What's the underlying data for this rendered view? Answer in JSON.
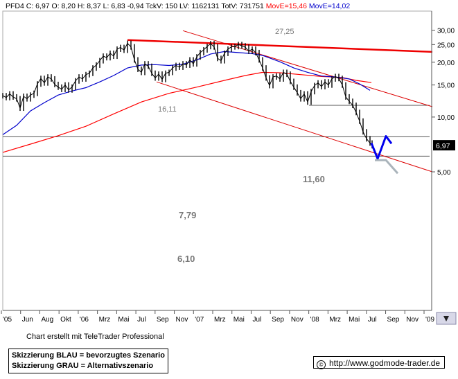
{
  "header": {
    "symbol": "PFD4",
    "quote": "C: 6,97 O: 8,20 H: 8,37 L: 6,83 -0,94 TckV: 150 LV: 1162131 TotV: 731751",
    "ma_long_label": "MovE=15,46",
    "ma_short_label": "MovE=14,02",
    "ma_long_color": "#ff0000",
    "ma_short_color": "#0000cc"
  },
  "chart_data": {
    "type": "line",
    "y_scale": "log",
    "ylim": [
      4.8,
      31.5
    ],
    "y_ticks": [
      {
        "value": 5,
        "label": "5,00"
      },
      {
        "value": 10,
        "label": "10,00"
      },
      {
        "value": 15,
        "label": "15,00"
      },
      {
        "value": 20,
        "label": "20,00"
      },
      {
        "value": 25,
        "label": "25,00"
      },
      {
        "value": 30,
        "label": "30,00"
      }
    ],
    "x_labels": [
      "'05",
      "Jun",
      "Aug",
      "Okt",
      "'06",
      "Mrz",
      "Mai",
      "Jul",
      "Sep",
      "Nov",
      "'07",
      "Mrz",
      "Mai",
      "Jul",
      "Sep",
      "Nov",
      "'08",
      "Mrz",
      "Mai",
      "Jul",
      "Sep",
      "Nov",
      "'09"
    ],
    "last_price_label": "6,97",
    "level_lines": [
      {
        "value": 11.6,
        "label": "11,60"
      },
      {
        "value": 7.79,
        "label": "7,79"
      },
      {
        "value": 6.1,
        "label": "6,10"
      }
    ],
    "annotations": [
      {
        "text": "27,25",
        "value": 27.25
      },
      {
        "text": "16,11",
        "value": 16.11
      }
    ],
    "price_series": [
      [
        0,
        13.1
      ],
      [
        5,
        12.8
      ],
      [
        10,
        13.4
      ],
      [
        15,
        12.9
      ],
      [
        20,
        12.6
      ],
      [
        25,
        11.2
      ],
      [
        30,
        13.0
      ],
      [
        35,
        12.6
      ],
      [
        40,
        13.2
      ],
      [
        45,
        13.5
      ],
      [
        50,
        15.2
      ],
      [
        55,
        16.3
      ],
      [
        60,
        15.4
      ],
      [
        65,
        16.6
      ],
      [
        70,
        16.2
      ],
      [
        75,
        15.1
      ],
      [
        80,
        14.6
      ],
      [
        85,
        14.2
      ],
      [
        90,
        15.0
      ],
      [
        95,
        14.1
      ],
      [
        100,
        14.6
      ],
      [
        105,
        15.8
      ],
      [
        110,
        16.6
      ],
      [
        115,
        16.2
      ],
      [
        120,
        17.1
      ],
      [
        125,
        17.4
      ],
      [
        130,
        18.6
      ],
      [
        135,
        19.3
      ],
      [
        140,
        20.4
      ],
      [
        145,
        21.6
      ],
      [
        150,
        21.2
      ],
      [
        155,
        22.4
      ],
      [
        160,
        21.6
      ],
      [
        165,
        23.6
      ],
      [
        170,
        24.1
      ],
      [
        175,
        23.3
      ],
      [
        180,
        25.4
      ],
      [
        185,
        24.3
      ],
      [
        190,
        20.6
      ],
      [
        195,
        18.3
      ],
      [
        200,
        17.6
      ],
      [
        205,
        19.6
      ],
      [
        210,
        19.0
      ],
      [
        215,
        17.4
      ],
      [
        220,
        16.4
      ],
      [
        225,
        17.2
      ],
      [
        230,
        16.1
      ],
      [
        235,
        17.4
      ],
      [
        240,
        17.6
      ],
      [
        245,
        18.6
      ],
      [
        250,
        19.2
      ],
      [
        255,
        18.8
      ],
      [
        260,
        19.6
      ],
      [
        265,
        19.3
      ],
      [
        270,
        20.6
      ],
      [
        275,
        19.6
      ],
      [
        280,
        21.4
      ],
      [
        285,
        22.6
      ],
      [
        290,
        23.4
      ],
      [
        295,
        24.4
      ],
      [
        300,
        25.3
      ],
      [
        305,
        24.3
      ],
      [
        310,
        21.0
      ],
      [
        315,
        20.4
      ],
      [
        320,
        22.4
      ],
      [
        325,
        23.6
      ],
      [
        330,
        24.3
      ],
      [
        335,
        24.4
      ],
      [
        340,
        25.0
      ],
      [
        345,
        24.6
      ],
      [
        350,
        24.2
      ],
      [
        355,
        23.0
      ],
      [
        360,
        23.6
      ],
      [
        365,
        22.6
      ],
      [
        370,
        20.6
      ],
      [
        375,
        18.6
      ],
      [
        380,
        16.4
      ],
      [
        385,
        14.9
      ],
      [
        390,
        16.6
      ],
      [
        395,
        16.8
      ],
      [
        400,
        16.2
      ],
      [
        405,
        17.6
      ],
      [
        410,
        17.2
      ],
      [
        415,
        15.7
      ],
      [
        420,
        14.6
      ],
      [
        425,
        13.6
      ],
      [
        430,
        12.6
      ],
      [
        435,
        13.4
      ],
      [
        440,
        12.1
      ],
      [
        445,
        13.8
      ],
      [
        450,
        14.9
      ],
      [
        455,
        15.4
      ],
      [
        460,
        14.7
      ],
      [
        465,
        15.6
      ],
      [
        470,
        15.0
      ],
      [
        475,
        16.2
      ],
      [
        480,
        16.7
      ],
      [
        485,
        16.3
      ],
      [
        490,
        15.0
      ],
      [
        495,
        12.9
      ],
      [
        500,
        12.2
      ],
      [
        505,
        11.6
      ],
      [
        510,
        10.6
      ],
      [
        515,
        9.5
      ],
      [
        520,
        8.3
      ],
      [
        525,
        7.6
      ],
      [
        530,
        7.2
      ],
      [
        533,
        6.97
      ]
    ],
    "ma_long_series": [
      [
        0,
        6.4
      ],
      [
        40,
        7.1
      ],
      [
        80,
        7.9
      ],
      [
        120,
        8.9
      ],
      [
        160,
        10.4
      ],
      [
        200,
        12.1
      ],
      [
        240,
        13.5
      ],
      [
        280,
        14.6
      ],
      [
        320,
        15.9
      ],
      [
        350,
        16.9
      ],
      [
        375,
        17.6
      ],
      [
        400,
        17.5
      ],
      [
        430,
        17.1
      ],
      [
        460,
        16.7
      ],
      [
        490,
        16.5
      ],
      [
        510,
        15.9
      ],
      [
        532,
        15.46
      ]
    ],
    "ma_short_series": [
      [
        0,
        8.0
      ],
      [
        20,
        9.0
      ],
      [
        40,
        10.8
      ],
      [
        60,
        12.0
      ],
      [
        80,
        13.2
      ],
      [
        100,
        13.9
      ],
      [
        120,
        14.5
      ],
      [
        140,
        15.6
      ],
      [
        160,
        16.9
      ],
      [
        180,
        18.6
      ],
      [
        200,
        19.3
      ],
      [
        220,
        19.4
      ],
      [
        240,
        19.2
      ],
      [
        260,
        19.5
      ],
      [
        280,
        20.6
      ],
      [
        300,
        22.2
      ],
      [
        320,
        22.9
      ],
      [
        340,
        22.6
      ],
      [
        360,
        22.3
      ],
      [
        375,
        21.8
      ],
      [
        400,
        20.1
      ],
      [
        420,
        18.6
      ],
      [
        440,
        17.6
      ],
      [
        460,
        16.8
      ],
      [
        480,
        16.6
      ],
      [
        500,
        16.2
      ],
      [
        515,
        15.2
      ],
      [
        530,
        14.02
      ]
    ],
    "trendlines": [
      {
        "role": "upper-bold",
        "color": "#ee0000",
        "points": [
          [
            180,
            26.5
          ],
          [
            620,
            22.8
          ]
        ]
      },
      {
        "role": "channel-upper",
        "color": "#dd0000",
        "points": [
          [
            260,
            29.8
          ],
          [
            620,
            11.4
          ]
        ]
      },
      {
        "role": "channel-lower",
        "color": "#dd0000",
        "points": [
          [
            222,
            15.6
          ],
          [
            620,
            5.0
          ]
        ]
      }
    ],
    "scenario_blue": [
      [
        532,
        7.2
      ],
      [
        541,
        5.9
      ],
      [
        553,
        7.85
      ],
      [
        561,
        7.15
      ]
    ],
    "scenario_gray": [
      [
        537,
        5.8
      ],
      [
        553,
        5.8
      ],
      [
        570,
        4.9
      ]
    ]
  },
  "footer": {
    "credit": "Chart erstellt mit TeleTrader Professional",
    "legend_blue": "Skizzierung BLAU = bevorzugtes Szenario",
    "legend_gray": "Skizzierung GRAU = Alternativszenario",
    "copyright_symbol": "©",
    "url": "http://www.godmode-trader.de"
  }
}
